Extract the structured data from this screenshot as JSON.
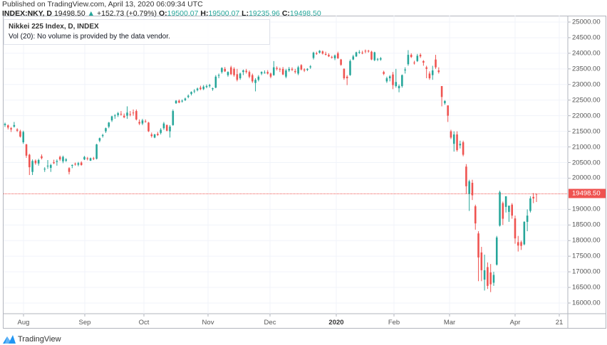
{
  "header": {
    "published": "Published on TradingView.com, April 13, 2020 06:09:34 UTC",
    "symbol": "INDEX:NKY, D",
    "price": "19498.50",
    "change": "+152.73 (+0.79%)",
    "o_label": "O:",
    "o": "19500.07",
    "h_label": "H:",
    "h": "19500.07",
    "l_label": "L:",
    "l": "19235.96",
    "c_label": "C:",
    "c": "19498.50"
  },
  "legend": {
    "title": "Nikkei 225 Index, D, INDEX",
    "volume_note": "Vol (20): No volume is provided by the data vendor."
  },
  "branding": {
    "logo_text": "TradingView"
  },
  "colors": {
    "up": "#26a69a",
    "down": "#ef5350",
    "grid": "#f0f3fa",
    "last_price": "#ef5350"
  },
  "chart_data": {
    "type": "candlestick",
    "title": "Nikkei 225 Index, D, INDEX",
    "ylim": [
      15700,
      25200
    ],
    "y_ticks": [
      "25000.00",
      "24500.00",
      "24000.00",
      "23500.00",
      "23000.00",
      "22500.00",
      "22000.00",
      "21500.00",
      "21000.00",
      "20500.00",
      "20000.00",
      "19000.00",
      "18500.00",
      "18000.00",
      "17500.00",
      "17000.00",
      "16500.00",
      "16000.00"
    ],
    "y_tick_values": [
      25000,
      24500,
      24000,
      23500,
      23000,
      22500,
      22000,
      21500,
      21000,
      20500,
      20000,
      19000,
      18500,
      18000,
      17500,
      17000,
      16500,
      16000
    ],
    "x_ticks": [
      "Aug",
      "Sep",
      "Oct",
      "Nov",
      "Dec",
      "2020",
      "Feb",
      "Mar",
      "Apr",
      "21"
    ],
    "last_price": 19498.5,
    "last_price_label": "19498.50",
    "grid": true,
    "ohlc": [
      [
        21700,
        21780,
        21640,
        21740
      ],
      [
        21690,
        21720,
        21560,
        21620
      ],
      [
        21600,
        21640,
        21480,
        21560
      ],
      [
        21650,
        21800,
        21620,
        21700
      ],
      [
        21560,
        21600,
        21480,
        21520
      ],
      [
        21500,
        21550,
        21300,
        21330
      ],
      [
        21150,
        21520,
        21100,
        21480
      ],
      [
        21080,
        21100,
        20650,
        20720
      ],
      [
        20750,
        20780,
        20100,
        20350
      ],
      [
        20200,
        20600,
        20100,
        20550
      ],
      [
        20560,
        20600,
        20430,
        20480
      ],
      [
        20470,
        20620,
        20400,
        20580
      ],
      [
        20700,
        20760,
        20600,
        20640
      ],
      [
        20280,
        20350,
        20200,
        20300
      ],
      [
        20380,
        20580,
        20300,
        20400
      ],
      [
        20330,
        20460,
        20200,
        20420
      ],
      [
        20510,
        20590,
        20450,
        20480
      ],
      [
        20520,
        20600,
        20400,
        20550
      ],
      [
        20680,
        20720,
        20550,
        20600
      ],
      [
        20540,
        20720,
        20480,
        20680
      ],
      [
        20560,
        20640,
        20520,
        20600
      ],
      [
        20320,
        20350,
        20120,
        20200
      ],
      [
        20400,
        20440,
        20320,
        20420
      ],
      [
        20460,
        20500,
        20400,
        20450
      ],
      [
        20430,
        20520,
        20380,
        20480
      ],
      [
        20500,
        20540,
        20400,
        20420
      ],
      [
        20600,
        20710,
        20580,
        20680
      ],
      [
        20640,
        20680,
        20570,
        20620
      ],
      [
        20560,
        20660,
        20550,
        20640
      ],
      [
        20640,
        20680,
        20580,
        20620
      ],
      [
        20620,
        21100,
        20600,
        21080
      ],
      [
        21200,
        21300,
        21150,
        21280
      ],
      [
        21350,
        21420,
        21300,
        21380
      ],
      [
        21500,
        21620,
        21450,
        21600
      ],
      [
        21650,
        21800,
        21600,
        21780
      ],
      [
        21850,
        22000,
        21800,
        21980
      ],
      [
        22000,
        22050,
        21900,
        22010
      ],
      [
        22020,
        22120,
        21960,
        22080
      ],
      [
        22060,
        22150,
        22000,
        22040
      ],
      [
        22000,
        22070,
        21920,
        21950
      ],
      [
        22000,
        22300,
        21900,
        22100
      ],
      [
        22050,
        22150,
        21980,
        22040
      ],
      [
        22100,
        22200,
        22000,
        22080
      ],
      [
        22150,
        22200,
        21850,
        21880
      ],
      [
        21800,
        21880,
        21700,
        21750
      ],
      [
        21750,
        21900,
        21700,
        21850
      ],
      [
        21820,
        21880,
        21780,
        21800
      ],
      [
        21780,
        21800,
        21480,
        21500
      ],
      [
        21400,
        21460,
        21300,
        21350
      ],
      [
        21300,
        21420,
        21280,
        21400
      ],
      [
        21420,
        21480,
        21350,
        21380
      ],
      [
        21450,
        21600,
        21400,
        21550
      ],
      [
        21600,
        21800,
        21550,
        21750
      ],
      [
        21700,
        21720,
        21500,
        21520
      ],
      [
        21500,
        21700,
        21300,
        21650
      ],
      [
        21700,
        22200,
        21680,
        22150
      ],
      [
        22400,
        22500,
        22380,
        22480
      ],
      [
        22480,
        22520,
        22400,
        22420
      ],
      [
        22480,
        22520,
        22420,
        22480
      ],
      [
        22500,
        22580,
        22470,
        22550
      ],
      [
        22600,
        22680,
        22560,
        22640
      ],
      [
        22700,
        22780,
        22650,
        22760
      ],
      [
        22780,
        22850,
        22720,
        22800
      ],
      [
        22820,
        22900,
        22780,
        22870
      ],
      [
        22900,
        22960,
        22820,
        22850
      ],
      [
        22850,
        22980,
        22820,
        22930
      ],
      [
        22920,
        23000,
        22880,
        22950
      ],
      [
        22950,
        23020,
        22900,
        22980
      ],
      [
        22850,
        22900,
        22800,
        22880
      ],
      [
        22900,
        23300,
        22880,
        23250
      ],
      [
        23280,
        23350,
        23200,
        23300
      ],
      [
        23400,
        23550,
        23350,
        23530
      ],
      [
        23500,
        23560,
        23400,
        23420
      ],
      [
        23300,
        23420,
        23250,
        23400
      ],
      [
        23550,
        23600,
        23300,
        23330
      ],
      [
        23500,
        23550,
        23250,
        23300
      ],
      [
        23330,
        23500,
        23100,
        23150
      ],
      [
        23200,
        23380,
        23150,
        23350
      ],
      [
        23400,
        23480,
        23300,
        23450
      ],
      [
        23440,
        23500,
        23350,
        23400
      ],
      [
        23400,
        23450,
        23200,
        23250
      ],
      [
        23300,
        23350,
        23050,
        23100
      ],
      [
        23050,
        23200,
        22780,
        23150
      ],
      [
        23150,
        23300,
        23100,
        23250
      ],
      [
        23350,
        23420,
        23300,
        23400
      ],
      [
        23380,
        23450,
        23350,
        23380
      ],
      [
        23400,
        23460,
        23320,
        23350
      ],
      [
        23350,
        23380,
        23200,
        23250
      ],
      [
        23300,
        23750,
        23280,
        23550
      ],
      [
        23530,
        23580,
        23450,
        23500
      ],
      [
        23500,
        23540,
        23400,
        23480
      ],
      [
        23500,
        23560,
        23300,
        23320
      ],
      [
        23250,
        23500,
        23200,
        23450
      ],
      [
        23450,
        23560,
        23400,
        23500
      ],
      [
        23500,
        23550,
        23430,
        23470
      ],
      [
        23430,
        23500,
        23350,
        23400
      ],
      [
        23350,
        23600,
        23300,
        23550
      ],
      [
        23620,
        23650,
        23450,
        23480
      ],
      [
        23480,
        23520,
        23400,
        23450
      ],
      [
        23470,
        23520,
        23430,
        23500
      ],
      [
        23550,
        23620,
        23500,
        23580
      ],
      [
        23850,
        24050,
        23800,
        24020
      ],
      [
        24000,
        24050,
        23950,
        23980
      ],
      [
        24020,
        24100,
        23990,
        24080
      ],
      [
        24060,
        24090,
        23960,
        23990
      ],
      [
        23980,
        24050,
        23930,
        23950
      ],
      [
        23950,
        24000,
        23880,
        23900
      ],
      [
        23880,
        23920,
        23830,
        23860
      ],
      [
        23840,
        23960,
        23780,
        23930
      ],
      [
        24000,
        24050,
        23820,
        23840
      ],
      [
        23800,
        23820,
        23600,
        23630
      ],
      [
        23500,
        23520,
        23150,
        23200
      ],
      [
        23250,
        23300,
        22980,
        23200
      ],
      [
        23300,
        23800,
        23280,
        23750
      ],
      [
        23800,
        23950,
        23780,
        23900
      ],
      [
        23900,
        24050,
        23880,
        24030
      ],
      [
        24030,
        24100,
        23980,
        24040
      ],
      [
        24020,
        24080,
        23970,
        24000
      ],
      [
        24080,
        24120,
        24000,
        24060
      ],
      [
        24080,
        24110,
        24020,
        24060
      ],
      [
        24050,
        24080,
        23780,
        23800
      ],
      [
        23780,
        24050,
        23750,
        24030
      ],
      [
        23800,
        23850,
        23750,
        23820
      ],
      [
        23800,
        23880,
        23760,
        23840
      ],
      [
        23400,
        23440,
        23300,
        23340
      ],
      [
        23100,
        23250,
        23050,
        23200
      ],
      [
        23200,
        23300,
        23100,
        23260
      ],
      [
        23320,
        23400,
        22850,
        22980
      ],
      [
        22950,
        23500,
        22900,
        23080
      ],
      [
        22880,
        23000,
        22750,
        22950
      ],
      [
        22950,
        23320,
        22900,
        23300
      ],
      [
        23450,
        23550,
        23350,
        23480
      ],
      [
        23650,
        24100,
        23600,
        23950
      ],
      [
        23950,
        24000,
        23850,
        23880
      ],
      [
        23700,
        23760,
        23640,
        23680
      ],
      [
        23750,
        23980,
        23720,
        23920
      ],
      [
        23950,
        24000,
        23850,
        23900
      ],
      [
        23750,
        23780,
        23600,
        23700
      ],
      [
        23550,
        23600,
        23200,
        23500
      ],
      [
        23350,
        23420,
        23150,
        23200
      ],
      [
        23300,
        23600,
        23150,
        23450
      ],
      [
        23800,
        23950,
        23500,
        23550
      ],
      [
        23450,
        23550,
        23350,
        23400
      ],
      [
        22950,
        22950,
        22300,
        22600
      ],
      [
        22400,
        22500,
        22350,
        22470
      ],
      [
        22330,
        22330,
        21800,
        22000
      ],
      [
        21500,
        21550,
        21250,
        21300
      ],
      [
        21100,
        21500,
        20850,
        21400
      ],
      [
        21400,
        21500,
        20850,
        20900
      ],
      [
        21050,
        21200,
        20950,
        21100
      ],
      [
        21150,
        21200,
        20700,
        20750
      ],
      [
        20370,
        20450,
        19500,
        19740
      ],
      [
        19500,
        19950,
        18950,
        19900
      ],
      [
        19850,
        19950,
        19300,
        19450
      ],
      [
        19100,
        19150,
        18350,
        18550
      ],
      [
        18230,
        18300,
        16700,
        17460
      ],
      [
        17620,
        17800,
        16700,
        17050
      ],
      [
        16750,
        17550,
        16400,
        17050
      ],
      [
        17150,
        17300,
        16450,
        16550
      ],
      [
        16980,
        17250,
        16350,
        16600
      ],
      [
        16650,
        17000,
        16550,
        16900
      ],
      [
        17230,
        18150,
        17200,
        18100
      ],
      [
        18480,
        19600,
        18450,
        19550
      ],
      [
        19200,
        19250,
        18500,
        18700
      ],
      [
        19080,
        19420,
        18900,
        19420
      ],
      [
        18920,
        19100,
        18600,
        19120
      ],
      [
        19150,
        19200,
        18700,
        18800
      ],
      [
        18710,
        18800,
        17900,
        18070
      ],
      [
        17950,
        18150,
        17650,
        17840
      ],
      [
        17950,
        18000,
        17700,
        17830
      ],
      [
        17880,
        18620,
        17850,
        18600
      ],
      [
        18600,
        19000,
        18300,
        18800
      ],
      [
        18950,
        19420,
        18900,
        19350
      ],
      [
        19400,
        19520,
        19200,
        19350
      ],
      [
        19500.07,
        19500.07,
        19235.96,
        19498.5
      ]
    ]
  }
}
